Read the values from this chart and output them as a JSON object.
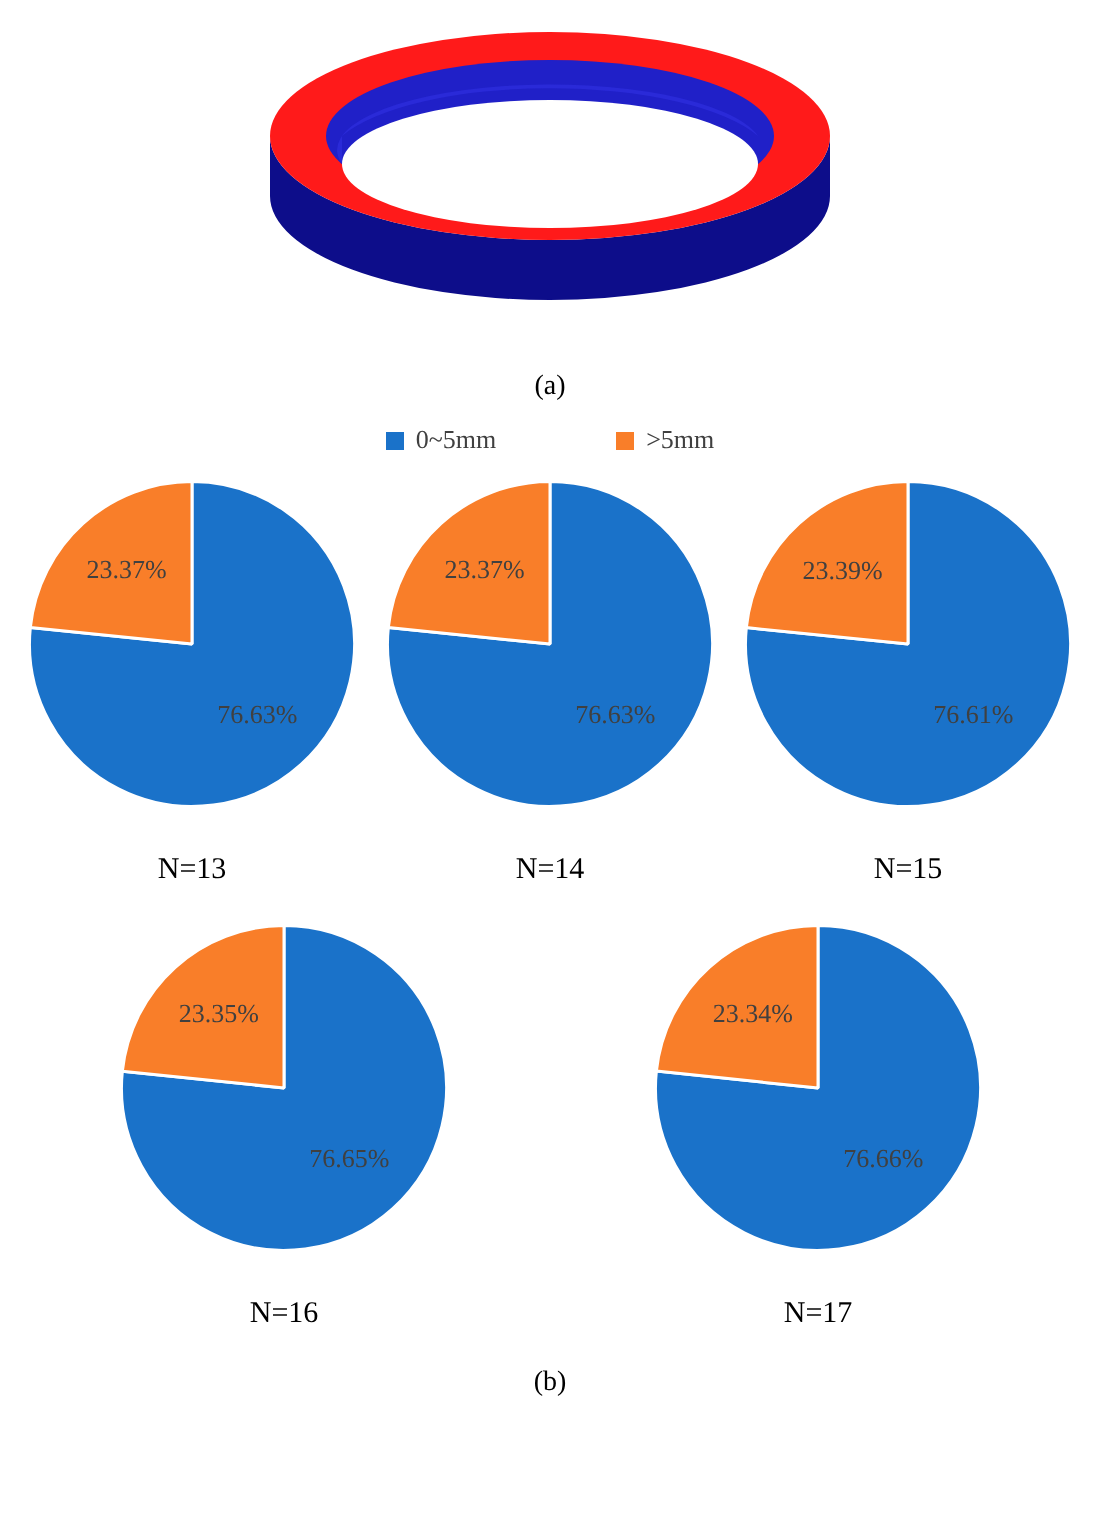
{
  "chart_data": [
    {
      "type": "pie",
      "title": "N=13",
      "categories": [
        "0~5mm",
        ">5mm"
      ],
      "values": [
        76.63,
        23.37
      ],
      "value_labels": [
        "76.63%",
        "23.37%"
      ],
      "colors": [
        "#1a72c9",
        "#f97e29"
      ],
      "legend": "top",
      "annotations": [
        "(a)"
      ]
    },
    {
      "type": "pie",
      "title": "N=14",
      "values": [
        76.63,
        23.37
      ],
      "value_labels": [
        "76.63%",
        "23.37%"
      ],
      "colors": [
        "#1a72c9",
        "#f97e29"
      ]
    },
    {
      "type": "pie",
      "title": "N=15",
      "values": [
        76.61,
        23.39
      ],
      "value_labels": [
        "76.61%",
        "23.39%"
      ],
      "colors": [
        "#1a72c9",
        "#f97e29"
      ]
    },
    {
      "type": "pie",
      "title": "N=16",
      "values": [
        76.65,
        23.35
      ],
      "value_labels": [
        "76.65%",
        "23.35%"
      ],
      "colors": [
        "#1a72c9",
        "#f97e29"
      ]
    },
    {
      "type": "pie",
      "title": "N=17",
      "values": [
        76.66,
        23.34
      ],
      "value_labels": [
        "76.66%",
        "23.34%"
      ],
      "colors": [
        "#1a72c9",
        "#f97e29"
      ],
      "annotations": [
        "(b)"
      ]
    }
  ]
}
